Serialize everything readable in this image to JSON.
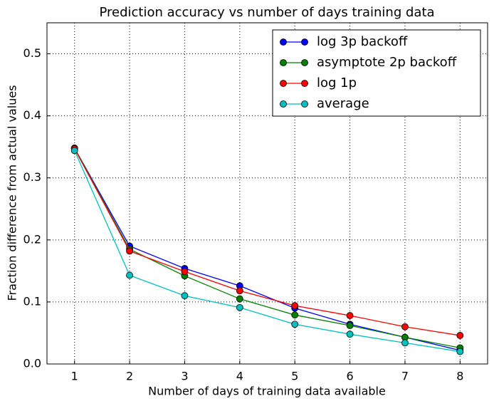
{
  "chart_data": {
    "type": "line",
    "title": "Prediction accuracy vs number of days training data",
    "x_label": "Number of days of training data available",
    "y_label": "Fraction difference from actual values",
    "x": [
      1,
      2,
      3,
      4,
      5,
      6,
      7,
      8
    ],
    "series": [
      {
        "name": "log 3p backoff",
        "color": "#0000ff",
        "values": [
          0.348,
          0.19,
          0.154,
          0.126,
          0.09,
          0.064,
          0.043,
          0.022
        ]
      },
      {
        "name": "asymptote 2p backoff",
        "color": "#008000",
        "values": [
          0.348,
          0.185,
          0.142,
          0.105,
          0.079,
          0.062,
          0.043,
          0.026
        ]
      },
      {
        "name": "log 1p",
        "color": "#ff0000",
        "values": [
          0.347,
          0.182,
          0.149,
          0.118,
          0.094,
          0.078,
          0.06,
          0.046
        ]
      },
      {
        "name": "average",
        "color": "#00bfbf",
        "values": [
          0.344,
          0.143,
          0.11,
          0.091,
          0.064,
          0.048,
          0.034,
          0.02
        ]
      }
    ],
    "xlim": [
      0.5,
      8.5
    ],
    "xticks": [
      1,
      2,
      3,
      4,
      5,
      6,
      7,
      8
    ],
    "ylim": [
      0,
      0.55
    ],
    "yticks": [
      {
        "value": 0,
        "label": "0.0"
      },
      0.1,
      0.2,
      0.3,
      0.4,
      0.5
    ],
    "grid": true,
    "legend": "upper-right"
  }
}
